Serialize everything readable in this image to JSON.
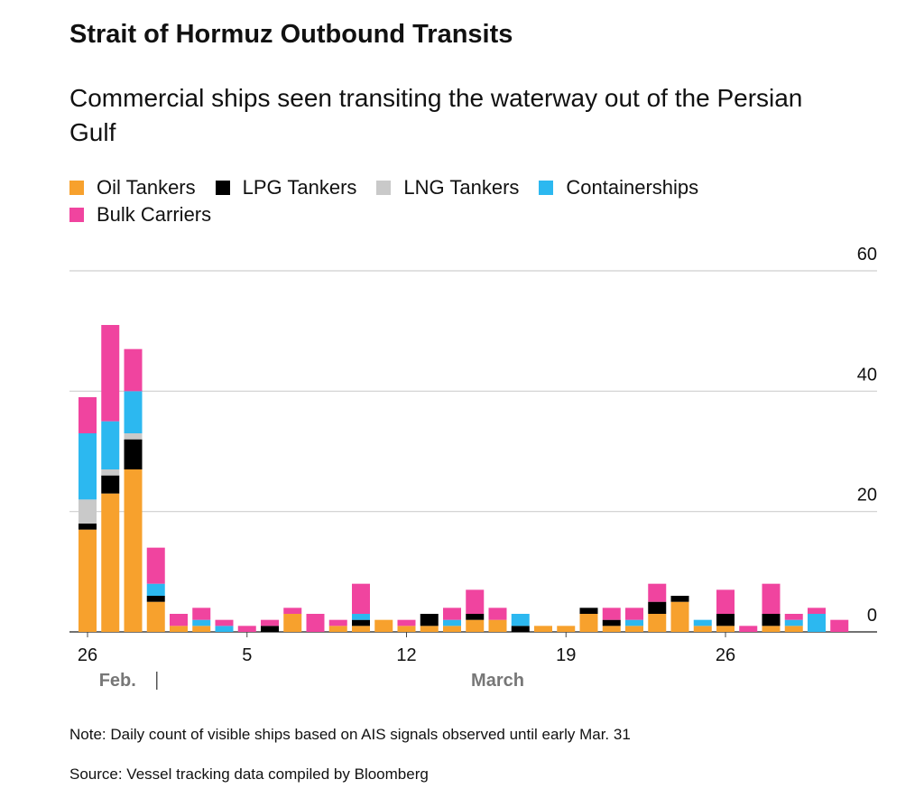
{
  "chart_data": {
    "type": "stacked_bar",
    "title": "Strait of Hormuz Outbound Transits",
    "subtitle": "Commercial ships seen transiting the waterway out of the Persian Gulf",
    "categories": [
      "26",
      null,
      null,
      null,
      null,
      null,
      null,
      "5",
      null,
      null,
      null,
      null,
      null,
      null,
      "12",
      null,
      null,
      null,
      null,
      null,
      null,
      "19",
      null,
      null,
      null,
      null,
      null,
      null,
      "26",
      null,
      null,
      null,
      null,
      null
    ],
    "months": [
      "Feb.",
      "March"
    ],
    "series": [
      {
        "name": "Oil Tankers",
        "color": "#f7a12d",
        "values": [
          17,
          23,
          27,
          5,
          1,
          1,
          0,
          0,
          0,
          3,
          0,
          1,
          1,
          2,
          1,
          1,
          1,
          2,
          2,
          0,
          1,
          1,
          3,
          1,
          1,
          3,
          5,
          1,
          1,
          0,
          1,
          1,
          0,
          0
        ]
      },
      {
        "name": "LPG Tankers",
        "color": "#000000",
        "values": [
          1,
          3,
          5,
          1,
          0,
          0,
          0,
          0,
          1,
          0,
          0,
          0,
          1,
          0,
          0,
          2,
          0,
          1,
          0,
          1,
          0,
          0,
          1,
          1,
          0,
          2,
          1,
          0,
          2,
          0,
          2,
          0,
          0,
          0
        ]
      },
      {
        "name": "LNG Tankers",
        "color": "#c9c9c9",
        "values": [
          4,
          1,
          1,
          0,
          0,
          0,
          0,
          0,
          0,
          0,
          0,
          0,
          0,
          0,
          0,
          0,
          0,
          0,
          0,
          0,
          0,
          0,
          0,
          0,
          0,
          0,
          0,
          0,
          0,
          0,
          0,
          0,
          0,
          0
        ]
      },
      {
        "name": "Containerships",
        "color": "#2cb8f0",
        "values": [
          11,
          8,
          7,
          2,
          0,
          1,
          1,
          0,
          0,
          0,
          0,
          0,
          1,
          0,
          0,
          0,
          1,
          0,
          0,
          2,
          0,
          0,
          0,
          0,
          1,
          0,
          0,
          1,
          0,
          0,
          0,
          1,
          3,
          0
        ]
      },
      {
        "name": "Bulk Carriers",
        "color": "#f0449f",
        "values": [
          6,
          16,
          7,
          6,
          2,
          2,
          1,
          1,
          1,
          1,
          3,
          1,
          5,
          0,
          1,
          0,
          2,
          4,
          2,
          0,
          0,
          0,
          0,
          2,
          2,
          3,
          0,
          0,
          4,
          1,
          5,
          1,
          1,
          2
        ]
      }
    ],
    "ylim": [
      0,
      60
    ],
    "yticks": [
      0,
      20,
      40,
      60
    ],
    "grid": true,
    "note": "Note: Daily count of visible ships based on AIS signals observed until early Mar. 31",
    "source": "Source: Vessel tracking data compiled by Bloomberg"
  }
}
